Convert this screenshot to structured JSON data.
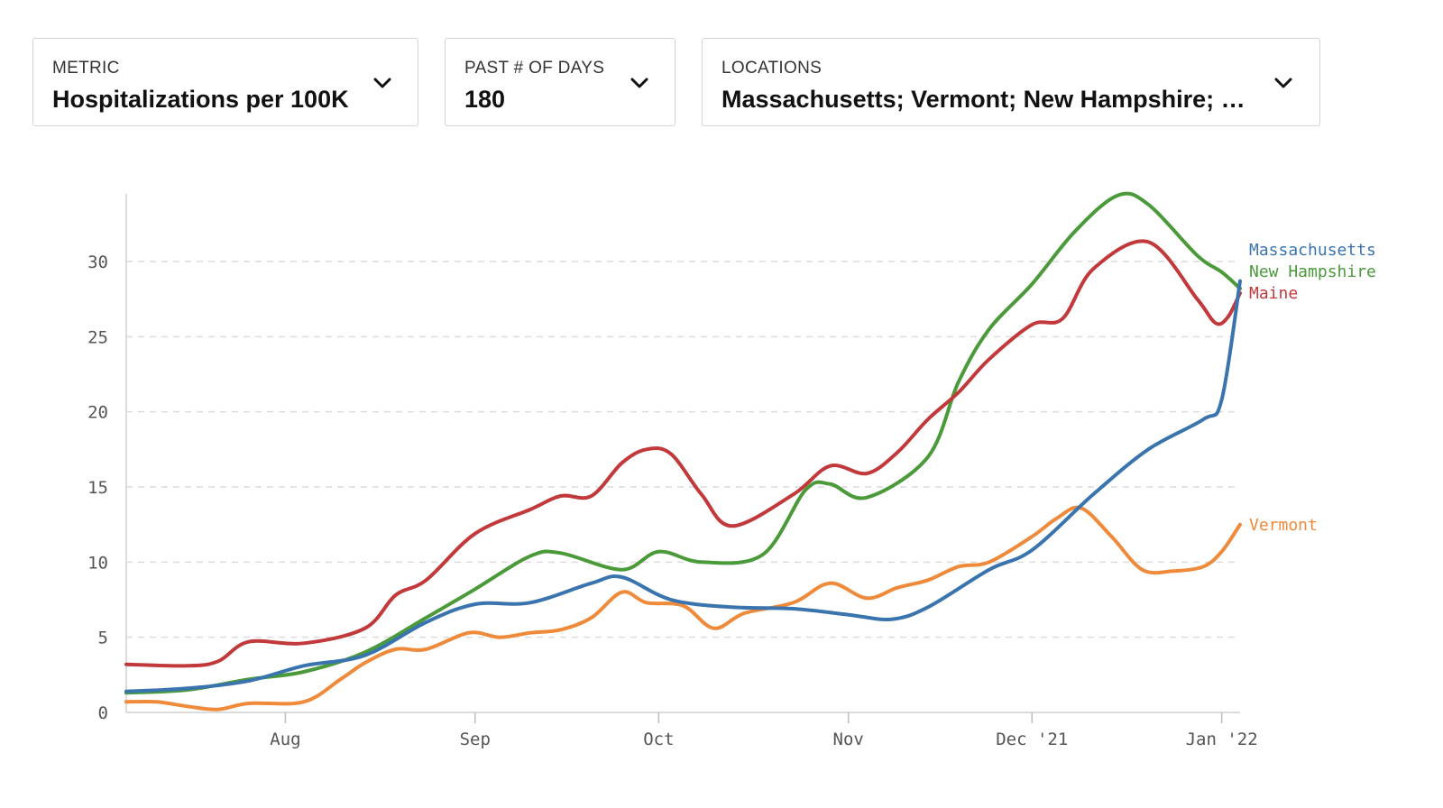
{
  "controls": {
    "metric": {
      "label": "METRIC",
      "value": "Hospitalizations per 100K"
    },
    "days": {
      "label": "PAST # OF DAYS",
      "value": "180"
    },
    "locations": {
      "label": "LOCATIONS",
      "value": "Massachusetts; Vermont; New Hampshire; Maine"
    }
  },
  "icons": {
    "dropdown": "chevron-down-icon"
  },
  "chart_data": {
    "type": "line",
    "title": "",
    "xlabel": "",
    "ylabel": "",
    "x_domain": [
      "2021-07-06",
      "2022-01-04"
    ],
    "ylim": [
      0,
      34.5
    ],
    "y_ticks": [
      0,
      5,
      10,
      15,
      20,
      25,
      30
    ],
    "x_ticks": [
      {
        "date": "2021-08-01",
        "label": "Aug"
      },
      {
        "date": "2021-09-01",
        "label": "Sep"
      },
      {
        "date": "2021-10-01",
        "label": "Oct"
      },
      {
        "date": "2021-11-01",
        "label": "Nov"
      },
      {
        "date": "2021-12-01",
        "label": "Dec '21"
      },
      {
        "date": "2022-01-01",
        "label": "Jan '22"
      }
    ],
    "grid": "horizontal dashed",
    "series": [
      {
        "name": "Massachusetts",
        "color": "#3a74ae",
        "points": [
          [
            "2021-07-06",
            1.4
          ],
          [
            "2021-07-16",
            1.6
          ],
          [
            "2021-07-26",
            2.1
          ],
          [
            "2021-08-04",
            3.1
          ],
          [
            "2021-08-14",
            3.8
          ],
          [
            "2021-08-24",
            6.0
          ],
          [
            "2021-09-01",
            7.2
          ],
          [
            "2021-09-10",
            7.3
          ],
          [
            "2021-09-20",
            8.6
          ],
          [
            "2021-09-25",
            9.0
          ],
          [
            "2021-10-03",
            7.5
          ],
          [
            "2021-10-13",
            7.0
          ],
          [
            "2021-10-23",
            6.9
          ],
          [
            "2021-11-01",
            6.5
          ],
          [
            "2021-11-08",
            6.2
          ],
          [
            "2021-11-14",
            7.0
          ],
          [
            "2021-11-24",
            9.5
          ],
          [
            "2021-12-01",
            10.8
          ],
          [
            "2021-12-11",
            14.5
          ],
          [
            "2021-12-20",
            17.5
          ],
          [
            "2021-12-29",
            19.5
          ],
          [
            "2022-01-01",
            20.8
          ],
          [
            "2022-01-04",
            28.7
          ]
        ]
      },
      {
        "name": "New Hampshire",
        "color": "#4a9a3a",
        "points": [
          [
            "2021-07-06",
            1.3
          ],
          [
            "2021-07-16",
            1.5
          ],
          [
            "2021-07-26",
            2.2
          ],
          [
            "2021-08-04",
            2.7
          ],
          [
            "2021-08-14",
            4.0
          ],
          [
            "2021-08-24",
            6.3
          ],
          [
            "2021-09-01",
            8.2
          ],
          [
            "2021-09-10",
            10.4
          ],
          [
            "2021-09-15",
            10.6
          ],
          [
            "2021-09-25",
            9.5
          ],
          [
            "2021-10-01",
            10.7
          ],
          [
            "2021-10-08",
            10.0
          ],
          [
            "2021-10-18",
            10.5
          ],
          [
            "2021-10-25",
            14.8
          ],
          [
            "2021-10-29",
            15.2
          ],
          [
            "2021-11-04",
            14.3
          ],
          [
            "2021-11-14",
            17.0
          ],
          [
            "2021-11-19",
            22.0
          ],
          [
            "2021-11-24",
            25.5
          ],
          [
            "2021-12-01",
            28.5
          ],
          [
            "2021-12-08",
            32.0
          ],
          [
            "2021-12-15",
            34.4
          ],
          [
            "2021-12-20",
            33.8
          ],
          [
            "2021-12-28",
            30.4
          ],
          [
            "2022-01-01",
            29.3
          ],
          [
            "2022-01-04",
            28.2
          ]
        ]
      },
      {
        "name": "Maine",
        "color": "#c1393a",
        "points": [
          [
            "2021-07-06",
            3.2
          ],
          [
            "2021-07-16",
            3.1
          ],
          [
            "2021-07-21",
            3.4
          ],
          [
            "2021-07-26",
            4.7
          ],
          [
            "2021-08-04",
            4.6
          ],
          [
            "2021-08-14",
            5.6
          ],
          [
            "2021-08-19",
            7.8
          ],
          [
            "2021-08-24",
            8.8
          ],
          [
            "2021-09-01",
            11.9
          ],
          [
            "2021-09-10",
            13.5
          ],
          [
            "2021-09-15",
            14.4
          ],
          [
            "2021-09-20",
            14.4
          ],
          [
            "2021-09-25",
            16.6
          ],
          [
            "2021-09-29",
            17.5
          ],
          [
            "2021-10-03",
            17.2
          ],
          [
            "2021-10-08",
            14.5
          ],
          [
            "2021-10-13",
            12.4
          ],
          [
            "2021-10-23",
            14.5
          ],
          [
            "2021-10-29",
            16.4
          ],
          [
            "2021-11-04",
            15.9
          ],
          [
            "2021-11-09",
            17.3
          ],
          [
            "2021-11-14",
            19.5
          ],
          [
            "2021-11-19",
            21.3
          ],
          [
            "2021-11-24",
            23.5
          ],
          [
            "2021-12-01",
            25.8
          ],
          [
            "2021-12-06",
            26.2
          ],
          [
            "2021-12-11",
            29.5
          ],
          [
            "2021-12-20",
            31.3
          ],
          [
            "2021-12-28",
            27.5
          ],
          [
            "2021-12-31",
            25.9
          ],
          [
            "2022-01-02",
            26.3
          ],
          [
            "2022-01-04",
            27.9
          ]
        ]
      },
      {
        "name": "Vermont",
        "color": "#ee8a3a",
        "points": [
          [
            "2021-07-06",
            0.7
          ],
          [
            "2021-07-11",
            0.7
          ],
          [
            "2021-07-16",
            0.4
          ],
          [
            "2021-07-21",
            0.2
          ],
          [
            "2021-07-26",
            0.6
          ],
          [
            "2021-08-04",
            0.7
          ],
          [
            "2021-08-10",
            2.2
          ],
          [
            "2021-08-14",
            3.3
          ],
          [
            "2021-08-19",
            4.2
          ],
          [
            "2021-08-24",
            4.2
          ],
          [
            "2021-08-31",
            5.3
          ],
          [
            "2021-09-05",
            5.0
          ],
          [
            "2021-09-10",
            5.3
          ],
          [
            "2021-09-15",
            5.5
          ],
          [
            "2021-09-20",
            6.3
          ],
          [
            "2021-09-25",
            8.0
          ],
          [
            "2021-09-29",
            7.3
          ],
          [
            "2021-10-05",
            7.1
          ],
          [
            "2021-10-10",
            5.6
          ],
          [
            "2021-10-15",
            6.6
          ],
          [
            "2021-10-23",
            7.3
          ],
          [
            "2021-10-29",
            8.6
          ],
          [
            "2021-11-04",
            7.6
          ],
          [
            "2021-11-09",
            8.3
          ],
          [
            "2021-11-14",
            8.8
          ],
          [
            "2021-11-19",
            9.7
          ],
          [
            "2021-11-24",
            10.0
          ],
          [
            "2021-12-01",
            11.7
          ],
          [
            "2021-12-05",
            12.9
          ],
          [
            "2021-12-09",
            13.6
          ],
          [
            "2021-12-14",
            11.7
          ],
          [
            "2021-12-19",
            9.5
          ],
          [
            "2021-12-24",
            9.4
          ],
          [
            "2021-12-29",
            9.7
          ],
          [
            "2022-01-01",
            10.7
          ],
          [
            "2022-01-04",
            12.5
          ]
        ]
      }
    ],
    "legend_position": "right, at line ends"
  }
}
